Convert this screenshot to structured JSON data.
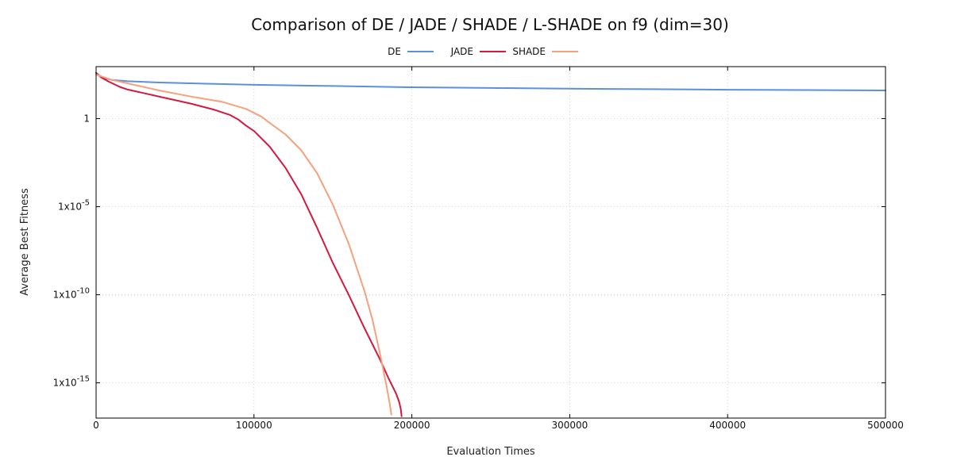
{
  "chart_data": {
    "type": "line",
    "title": "Comparison of DE / JADE / SHADE / L-SHADE on f9 (dim=30)",
    "xlabel": "Evaluation Times",
    "ylabel": "Average Best Fitness",
    "xlim": [
      0,
      500000
    ],
    "ylim_log10": [
      -17.0,
      2.95
    ],
    "yscale": "log",
    "grid": true,
    "legend_placement": "top-center",
    "legend_labels": [
      "DE",
      "JADE",
      "SHADE",
      ""
    ],
    "x_ticks": [
      {
        "value": 0,
        "label": "0"
      },
      {
        "value": 100000,
        "label": "100000"
      },
      {
        "value": 200000,
        "label": "200000"
      },
      {
        "value": 300000,
        "label": "300000"
      },
      {
        "value": 400000,
        "label": "400000"
      },
      {
        "value": 500000,
        "label": "500000"
      }
    ],
    "y_ticks": [
      {
        "log10": 0,
        "base": "1",
        "exp": ""
      },
      {
        "log10": -5,
        "base": "1x10",
        "exp": "-5"
      },
      {
        "log10": -10,
        "base": "1x10",
        "exp": "-10"
      },
      {
        "log10": -15,
        "base": "1x10",
        "exp": "-15"
      }
    ],
    "series": [
      {
        "name": "DE",
        "color": "#5b8fdf",
        "x": [
          0,
          2000,
          5000,
          10000,
          20000,
          40000,
          70000,
          100000,
          150000,
          200000,
          250000,
          300000,
          350000,
          400000,
          450000,
          500000
        ],
        "log10_y": [
          2.6,
          2.45,
          2.3,
          2.2,
          2.12,
          2.05,
          1.98,
          1.92,
          1.85,
          1.78,
          1.74,
          1.7,
          1.67,
          1.64,
          1.62,
          1.6
        ]
      },
      {
        "name": "JADE",
        "color": "#d6183f",
        "x": [
          0,
          3000,
          8000,
          15000,
          20000,
          30000,
          45000,
          60000,
          75000,
          85000,
          90000,
          95000,
          100000,
          110000,
          120000,
          130000,
          140000,
          150000,
          160000,
          170000,
          180000,
          185000,
          190000,
          192000,
          193000,
          193500
        ],
        "log10_y": [
          2.6,
          2.35,
          2.1,
          1.8,
          1.65,
          1.45,
          1.15,
          0.85,
          0.5,
          0.2,
          -0.05,
          -0.4,
          -0.7,
          -1.6,
          -2.8,
          -4.3,
          -6.2,
          -8.2,
          -10.0,
          -11.9,
          -13.7,
          -14.7,
          -15.6,
          -16.1,
          -16.5,
          -16.9
        ]
      },
      {
        "name": "SHADE",
        "color": "#f6a07e",
        "x": [
          0,
          5000,
          10000,
          20000,
          40000,
          60000,
          80000,
          95000,
          105000,
          110000,
          120000,
          130000,
          140000,
          150000,
          160000,
          170000,
          175000,
          180000,
          184000,
          186000,
          187000
        ],
        "log10_y": [
          2.5,
          2.35,
          2.2,
          2.0,
          1.6,
          1.25,
          0.95,
          0.55,
          0.1,
          -0.25,
          -0.9,
          -1.8,
          -3.1,
          -4.9,
          -7.1,
          -9.8,
          -11.4,
          -13.4,
          -15.2,
          -16.2,
          -16.8
        ]
      }
    ]
  }
}
